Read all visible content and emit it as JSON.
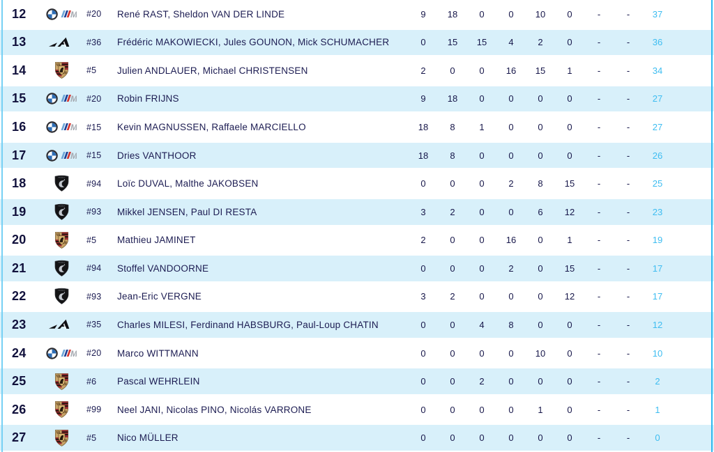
{
  "table": {
    "colors": {
      "accent_total": "#3EBDF1",
      "row_highlight": "#D8F0FA",
      "text_dark": "#1C1C52",
      "border_blue": "#49C2F0"
    },
    "rows": [
      {
        "pos": "12",
        "manufacturer": "bmw-m",
        "car": "#20",
        "drivers": "René RAST, Sheldon VAN DER LINDE",
        "points": [
          "9",
          "18",
          "0",
          "0",
          "10",
          "0",
          "-",
          "-"
        ],
        "total": "37"
      },
      {
        "pos": "13",
        "manufacturer": "alpine",
        "car": "#36",
        "drivers": "Frédéric MAKOWIECKI, Jules GOUNON, Mick SCHUMACHER",
        "points": [
          "0",
          "15",
          "15",
          "4",
          "2",
          "0",
          "-",
          "-"
        ],
        "total": "36"
      },
      {
        "pos": "14",
        "manufacturer": "porsche",
        "car": "#5",
        "drivers": "Julien ANDLAUER, Michael CHRISTENSEN",
        "points": [
          "2",
          "0",
          "0",
          "16",
          "15",
          "1",
          "-",
          "-"
        ],
        "total": "34"
      },
      {
        "pos": "15",
        "manufacturer": "bmw-m",
        "car": "#20",
        "drivers": "Robin FRIJNS",
        "points": [
          "9",
          "18",
          "0",
          "0",
          "0",
          "0",
          "-",
          "-"
        ],
        "total": "27"
      },
      {
        "pos": "16",
        "manufacturer": "bmw-m",
        "car": "#15",
        "drivers": "Kevin MAGNUSSEN, Raffaele MARCIELLO",
        "points": [
          "18",
          "8",
          "1",
          "0",
          "0",
          "0",
          "-",
          "-"
        ],
        "total": "27"
      },
      {
        "pos": "17",
        "manufacturer": "bmw-m",
        "car": "#15",
        "drivers": "Dries VANTHOOR",
        "points": [
          "18",
          "8",
          "0",
          "0",
          "0",
          "0",
          "-",
          "-"
        ],
        "total": "26"
      },
      {
        "pos": "18",
        "manufacturer": "peugeot",
        "car": "#94",
        "drivers": "Loïc DUVAL, Malthe JAKOBSEN",
        "points": [
          "0",
          "0",
          "0",
          "2",
          "8",
          "15",
          "-",
          "-"
        ],
        "total": "25"
      },
      {
        "pos": "19",
        "manufacturer": "peugeot",
        "car": "#93",
        "drivers": "Mikkel JENSEN, Paul DI RESTA",
        "points": [
          "3",
          "2",
          "0",
          "0",
          "6",
          "12",
          "-",
          "-"
        ],
        "total": "23"
      },
      {
        "pos": "20",
        "manufacturer": "porsche",
        "car": "#5",
        "drivers": "Mathieu JAMINET",
        "points": [
          "2",
          "0",
          "0",
          "16",
          "0",
          "1",
          "-",
          "-"
        ],
        "total": "19"
      },
      {
        "pos": "21",
        "manufacturer": "peugeot",
        "car": "#94",
        "drivers": "Stoffel VANDOORNE",
        "points": [
          "0",
          "0",
          "0",
          "2",
          "0",
          "15",
          "-",
          "-"
        ],
        "total": "17"
      },
      {
        "pos": "22",
        "manufacturer": "peugeot",
        "car": "#93",
        "drivers": "Jean-Eric VERGNE",
        "points": [
          "3",
          "2",
          "0",
          "0",
          "0",
          "12",
          "-",
          "-"
        ],
        "total": "17"
      },
      {
        "pos": "23",
        "manufacturer": "alpine",
        "car": "#35",
        "drivers": "Charles MILESI, Ferdinand HABSBURG, Paul-Loup CHATIN",
        "points": [
          "0",
          "0",
          "4",
          "8",
          "0",
          "0",
          "-",
          "-"
        ],
        "total": "12"
      },
      {
        "pos": "24",
        "manufacturer": "bmw-m",
        "car": "#20",
        "drivers": "Marco WITTMANN",
        "points": [
          "0",
          "0",
          "0",
          "0",
          "10",
          "0",
          "-",
          "-"
        ],
        "total": "10"
      },
      {
        "pos": "25",
        "manufacturer": "porsche",
        "car": "#6",
        "drivers": "Pascal WEHRLEIN",
        "points": [
          "0",
          "0",
          "2",
          "0",
          "0",
          "0",
          "-",
          "-"
        ],
        "total": "2"
      },
      {
        "pos": "26",
        "manufacturer": "porsche",
        "car": "#99",
        "drivers": "Neel JANI, Nicolas PINO, Nicolás VARRONE",
        "points": [
          "0",
          "0",
          "0",
          "0",
          "1",
          "0",
          "-",
          "-"
        ],
        "total": "1"
      },
      {
        "pos": "27",
        "manufacturer": "porsche",
        "car": "#5",
        "drivers": "Nico MÜLLER",
        "points": [
          "0",
          "0",
          "0",
          "0",
          "0",
          "0",
          "-",
          "-"
        ],
        "total": "0"
      }
    ]
  }
}
